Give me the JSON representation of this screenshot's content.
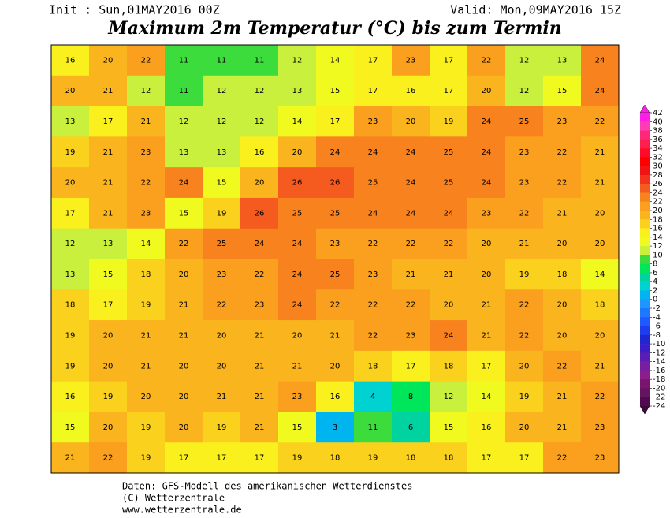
{
  "header": {
    "init": "Init : Sun,01MAY2016 00Z",
    "valid": "Valid: Mon,09MAY2016 15Z",
    "title": "Maximum 2m Temperatur (°C) bis zum Termin"
  },
  "map": {
    "values": [
      [
        16,
        20,
        22,
        11,
        11,
        11,
        12,
        14,
        17,
        23,
        17,
        22,
        12,
        13,
        24
      ],
      [
        20,
        21,
        12,
        11,
        12,
        12,
        13,
        15,
        17,
        16,
        17,
        20,
        12,
        15,
        24
      ],
      [
        13,
        17,
        21,
        12,
        12,
        12,
        14,
        17,
        23,
        20,
        19,
        24,
        25,
        23,
        22
      ],
      [
        19,
        21,
        23,
        13,
        13,
        16,
        20,
        24,
        24,
        24,
        25,
        24,
        23,
        22,
        21
      ],
      [
        20,
        21,
        22,
        24,
        15,
        20,
        26,
        26,
        25,
        24,
        25,
        24,
        23,
        22,
        21
      ],
      [
        17,
        21,
        23,
        15,
        19,
        26,
        25,
        25,
        24,
        24,
        24,
        23,
        22,
        21,
        20
      ],
      [
        12,
        13,
        14,
        22,
        25,
        24,
        24,
        23,
        22,
        22,
        22,
        20,
        21,
        20,
        20
      ],
      [
        13,
        15,
        18,
        20,
        23,
        22,
        24,
        25,
        23,
        21,
        21,
        20,
        19,
        18,
        14
      ],
      [
        18,
        17,
        19,
        21,
        22,
        23,
        24,
        22,
        22,
        22,
        20,
        21,
        22,
        20,
        18
      ],
      [
        19,
        20,
        21,
        21,
        20,
        21,
        20,
        21,
        22,
        23,
        24,
        21,
        22,
        20,
        20
      ],
      [
        19,
        20,
        21,
        20,
        20,
        21,
        21,
        20,
        18,
        17,
        18,
        17,
        20,
        22,
        21
      ],
      [
        16,
        19,
        20,
        20,
        21,
        21,
        23,
        16,
        4,
        8,
        12,
        14,
        19,
        21,
        22
      ],
      [
        15,
        20,
        19,
        20,
        19,
        21,
        15,
        3,
        11,
        6,
        15,
        16,
        20,
        21,
        23
      ],
      [
        21,
        22,
        19,
        17,
        17,
        17,
        19,
        18,
        19,
        18,
        18,
        17,
        17,
        22,
        23
      ]
    ]
  },
  "legend": {
    "levels": [
      42,
      40,
      38,
      36,
      34,
      32,
      30,
      28,
      26,
      24,
      22,
      20,
      18,
      16,
      14,
      12,
      10,
      8,
      6,
      4,
      2,
      0,
      -2,
      -4,
      -6,
      -8,
      -10,
      -12,
      -14,
      -16,
      -18,
      -20,
      -22,
      -24
    ],
    "colors": [
      "#ff1ee6",
      "#ff3cb4",
      "#ff2878",
      "#ff1e50",
      "#ff0a28",
      "#ff0000",
      "#f01414",
      "#f5321e",
      "#f55a1e",
      "#f8821e",
      "#faa01e",
      "#fab41e",
      "#fad21e",
      "#faf01e",
      "#f0fa1e",
      "#c8f03c",
      "#3cdc3c",
      "#00e65a",
      "#00d2a0",
      "#00d2d2",
      "#00b4f0",
      "#1e96ff",
      "#1e78ff",
      "#1e5aff",
      "#1e3cf0",
      "#1e28d2",
      "#3c1ec8",
      "#5a1eb4",
      "#781ea0",
      "#8c1e8c",
      "#7a146e",
      "#641460",
      "#500a50",
      "#3c0a3c"
    ]
  },
  "footer": {
    "line1": "Daten: GFS-Modell des amerikanischen Wetterdienstes",
    "line2": "(C) Wetterzentrale",
    "line3": "www.wetterzentrale.de"
  }
}
